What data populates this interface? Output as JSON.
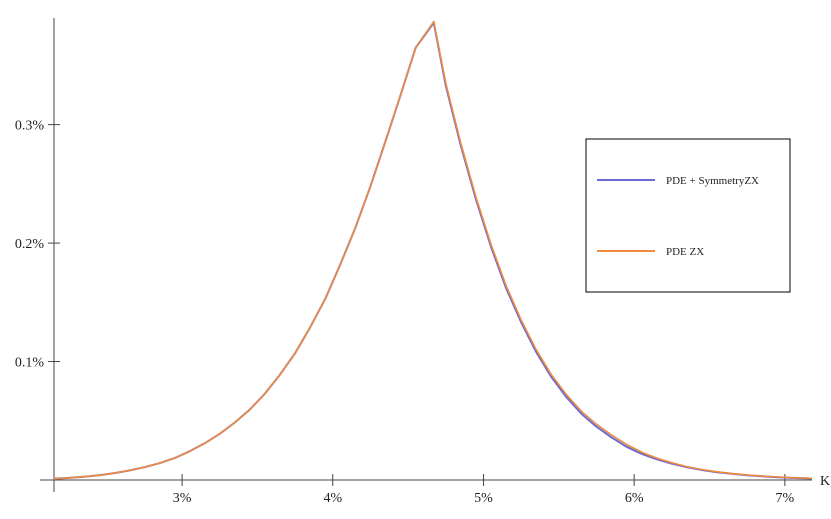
{
  "chart_data": {
    "type": "line",
    "xlabel": "K",
    "ylabel": "",
    "xlim": [
      0.0215,
      0.0718
    ],
    "ylim": [
      0,
      0.0039
    ],
    "x_ticks": [
      0.03,
      0.04,
      0.05,
      0.06,
      0.07
    ],
    "x_tick_labels": [
      "3%",
      "4%",
      "5%",
      "6%",
      "7%"
    ],
    "y_ticks": [
      0.001,
      0.002,
      0.003
    ],
    "y_tick_labels": [
      "0.1%",
      "0.2%",
      "0.3%"
    ],
    "legend_position": "right",
    "series": [
      {
        "name": "PDE + SymmetryZX",
        "color": "#6b6bd6",
        "x": [
          0.0215,
          0.0225,
          0.0235,
          0.0245,
          0.0255,
          0.0265,
          0.0275,
          0.0285,
          0.0295,
          0.0305,
          0.0315,
          0.0325,
          0.0335,
          0.0345,
          0.0355,
          0.0365,
          0.0375,
          0.0385,
          0.0395,
          0.0405,
          0.0415,
          0.0425,
          0.0435,
          0.0445,
          0.0455,
          0.0467,
          0.0475,
          0.0485,
          0.0495,
          0.0505,
          0.0515,
          0.0525,
          0.0535,
          0.0545,
          0.0555,
          0.0565,
          0.0575,
          0.0585,
          0.0595,
          0.0605,
          0.0615,
          0.0625,
          0.0635,
          0.0645,
          0.0655,
          0.0665,
          0.0675,
          0.0685,
          0.0695,
          0.0705,
          0.0718
        ],
        "y": [
          1e-05,
          1.8e-05,
          2.8e-05,
          4e-05,
          5.8e-05,
          8e-05,
          0.000108,
          0.000142,
          0.000185,
          0.000242,
          0.00031,
          0.00039,
          0.000485,
          0.000595,
          0.00073,
          0.00089,
          0.00107,
          0.00129,
          0.00153,
          0.00182,
          0.00213,
          0.00248,
          0.00286,
          0.00325,
          0.00365,
          0.00386,
          0.00333,
          0.00282,
          0.00237,
          0.00197,
          0.00162,
          0.00133,
          0.00108,
          0.00087,
          0.0007,
          0.00056,
          0.00045,
          0.00036,
          0.00028,
          0.00022,
          0.000175,
          0.000138,
          0.000108,
          8.4e-05,
          6.6e-05,
          5.2e-05,
          4e-05,
          3.1e-05,
          2.4e-05,
          1.8e-05,
          1.3e-05
        ]
      },
      {
        "name": "PDE ZX",
        "color": "#f08a3c",
        "x": [
          0.0215,
          0.0225,
          0.0235,
          0.0245,
          0.0255,
          0.0265,
          0.0275,
          0.0285,
          0.0295,
          0.0305,
          0.0315,
          0.0325,
          0.0335,
          0.0345,
          0.0355,
          0.0365,
          0.0375,
          0.0385,
          0.0395,
          0.0405,
          0.0415,
          0.0425,
          0.0435,
          0.0445,
          0.0455,
          0.0467,
          0.0475,
          0.0485,
          0.0495,
          0.0505,
          0.0515,
          0.0525,
          0.0535,
          0.0545,
          0.0555,
          0.0565,
          0.0575,
          0.0585,
          0.0595,
          0.0605,
          0.0615,
          0.0625,
          0.0635,
          0.0645,
          0.0655,
          0.0665,
          0.0675,
          0.0685,
          0.0695,
          0.0705,
          0.0718
        ],
        "y": [
          1e-05,
          1.8e-05,
          2.8e-05,
          4e-05,
          5.8e-05,
          8e-05,
          0.000108,
          0.000142,
          0.000185,
          0.000242,
          0.00031,
          0.00039,
          0.000485,
          0.000595,
          0.00073,
          0.00089,
          0.00107,
          0.00129,
          0.00153,
          0.00182,
          0.00213,
          0.00248,
          0.00286,
          0.00325,
          0.00365,
          0.00387,
          0.00335,
          0.00284,
          0.00239,
          0.00199,
          0.00164,
          0.00135,
          0.0011,
          0.00089,
          0.00072,
          0.00058,
          0.00047,
          0.00038,
          0.0003,
          0.000235,
          0.000185,
          0.000145,
          0.000113,
          8.8e-05,
          6.9e-05,
          5.4e-05,
          4.2e-05,
          3.3e-05,
          2.5e-05,
          1.9e-05,
          1.4e-05
        ]
      }
    ]
  }
}
